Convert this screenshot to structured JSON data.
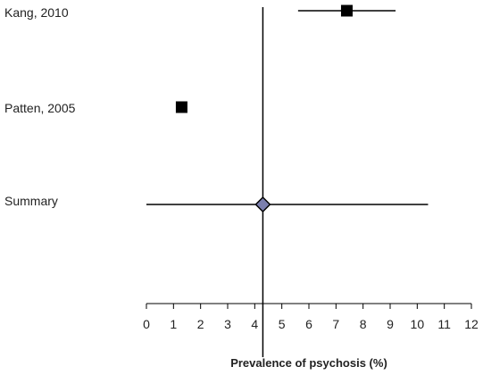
{
  "chart_data": {
    "type": "forest",
    "title": "",
    "xlabel": "Prevalence of psychosis (%)",
    "ylabel": "",
    "xlim": [
      0,
      12
    ],
    "x_ticks": [
      0,
      1,
      2,
      3,
      4,
      5,
      6,
      7,
      8,
      9,
      10,
      11,
      12
    ],
    "reference_line": 4.3,
    "grid": false,
    "studies": [
      {
        "label": "Kang, 2010",
        "estimate": 7.4,
        "ci_low": 5.6,
        "ci_high": 9.2,
        "marker": "square"
      },
      {
        "label": "Patten, 2005",
        "estimate": 1.3,
        "marker": "square"
      },
      {
        "label": "Summary",
        "estimate": 4.3,
        "ci_low": 0.0,
        "ci_high": 10.4,
        "marker": "diamond"
      }
    ],
    "colors": {
      "study_marker": "#000000",
      "summary_marker": "#7b7fae",
      "line": "#000000"
    }
  }
}
